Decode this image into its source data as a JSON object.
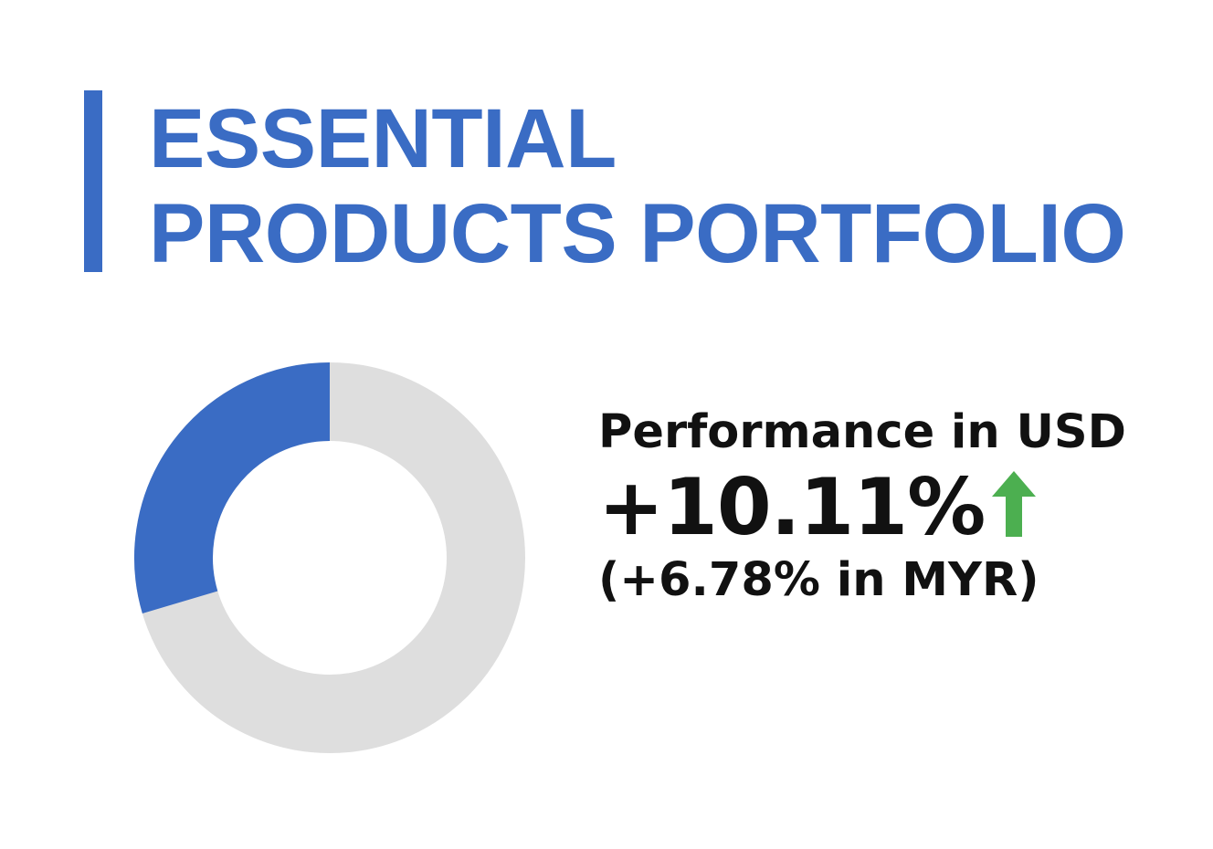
{
  "header": {
    "title_line1": "ESSENTIAL",
    "title_line2": "PRODUCTS PORTFOLIO",
    "accent_color": "#3a6cc4"
  },
  "donut": {
    "highlight_fraction": 0.296,
    "highlight_color": "#3a6cc4",
    "track_color": "#dedede"
  },
  "performance": {
    "label": "Performance in USD",
    "value": "+10.11%",
    "trend_icon": "up-arrow-icon",
    "trend_color": "#4caf50",
    "sub_value": "(+6.78% in MYR)"
  }
}
